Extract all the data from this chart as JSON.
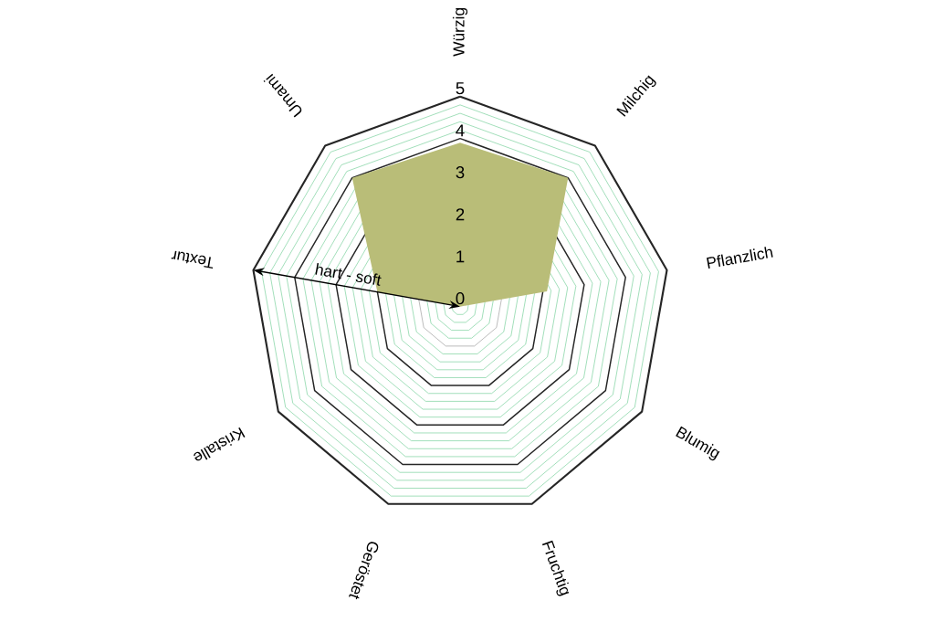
{
  "chart_data": {
    "type": "radar",
    "categories": [
      "Würzig",
      "Milchig",
      "Pflanzlich",
      "Blumig",
      "Fruchtig",
      "Geröstet",
      "Kristalle",
      "Textur",
      "Umami"
    ],
    "series": [
      {
        "color": "#b9bd78",
        "values": [
          3.9,
          4,
          2.1,
          0,
          0,
          0,
          0,
          2,
          4
        ]
      }
    ],
    "ylim": [
      0,
      5
    ],
    "yticks": [
      0,
      1,
      2,
      3,
      4,
      5
    ],
    "grid": true,
    "annotations": [
      "hart - soft"
    ]
  }
}
